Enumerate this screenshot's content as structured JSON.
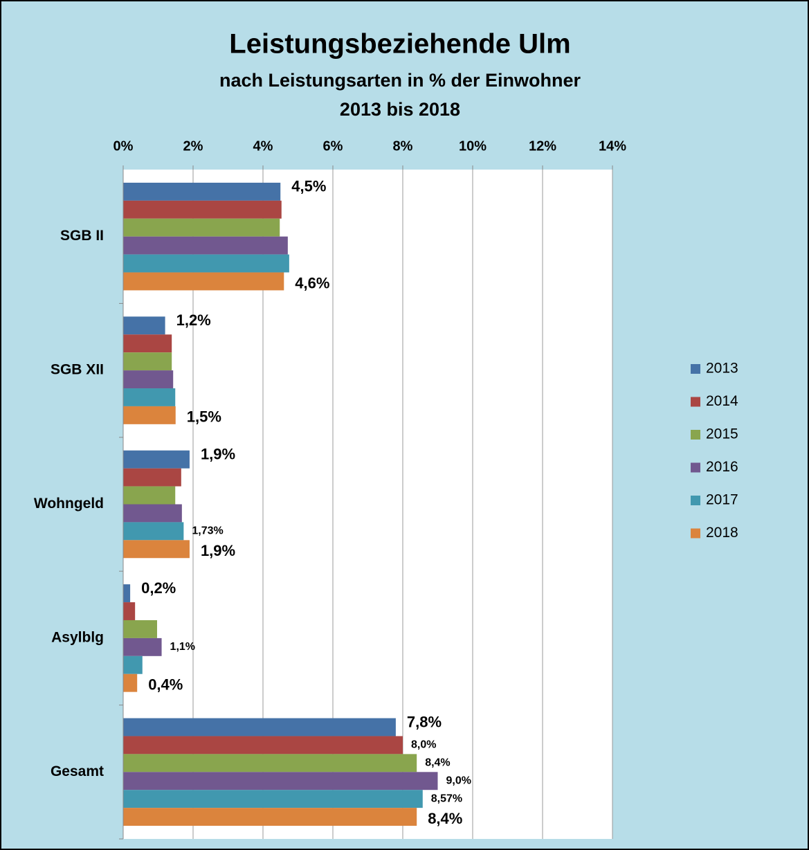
{
  "chart_data": {
    "type": "hbar",
    "title": "Leistungsbeziehende Ulm",
    "subtitle": [
      "nach Leistungsarten in % der Einwohner",
      "2013 bis 2018"
    ],
    "categories": [
      "SGB II",
      "SGB XII",
      "Wohngeld",
      "Asylblg",
      "Gesamt"
    ],
    "series": [
      {
        "name": "2013",
        "color": "#4572a7",
        "values": [
          4.5,
          1.2,
          1.9,
          0.2,
          7.8
        ],
        "value_labels": [
          "4,5%",
          "1,2%",
          "1,9%",
          "0,2%",
          "7,8%"
        ]
      },
      {
        "name": "2014",
        "color": "#aa4643",
        "values": [
          4.53,
          1.39,
          1.66,
          0.34,
          8.0
        ],
        "value_labels": [
          null,
          null,
          null,
          null,
          "8,0%"
        ]
      },
      {
        "name": "2015",
        "color": "#89a54e",
        "values": [
          4.48,
          1.39,
          1.49,
          0.97,
          8.4
        ],
        "value_labels": [
          null,
          null,
          null,
          null,
          "8,4%"
        ]
      },
      {
        "name": "2016",
        "color": "#71588f",
        "values": [
          4.71,
          1.43,
          1.68,
          1.1,
          9.0
        ],
        "value_labels": [
          null,
          null,
          null,
          "1,1%",
          "9,0%"
        ]
      },
      {
        "name": "2017",
        "color": "#4198af",
        "values": [
          4.75,
          1.49,
          1.73,
          0.55,
          8.57
        ],
        "value_labels": [
          null,
          null,
          "1,73%",
          null,
          "8,57%"
        ]
      },
      {
        "name": "2018",
        "color": "#db843d",
        "values": [
          4.6,
          1.5,
          1.9,
          0.4,
          8.4
        ],
        "value_labels": [
          "4,6%",
          "1,5%",
          "1,9%",
          "0,4%",
          "8,4%"
        ]
      }
    ],
    "xlim": [
      0,
      14
    ],
    "xticks": [
      {
        "value": 0,
        "label": "0%"
      },
      {
        "value": 2,
        "label": "2%"
      },
      {
        "value": 4,
        "label": "4%"
      },
      {
        "value": 6,
        "label": "6%"
      },
      {
        "value": 8,
        "label": "8%"
      },
      {
        "value": 10,
        "label": "10%"
      },
      {
        "value": 12,
        "label": "12%"
      },
      {
        "value": 14,
        "label": "14%"
      }
    ],
    "grid": true,
    "legend": "right"
  }
}
